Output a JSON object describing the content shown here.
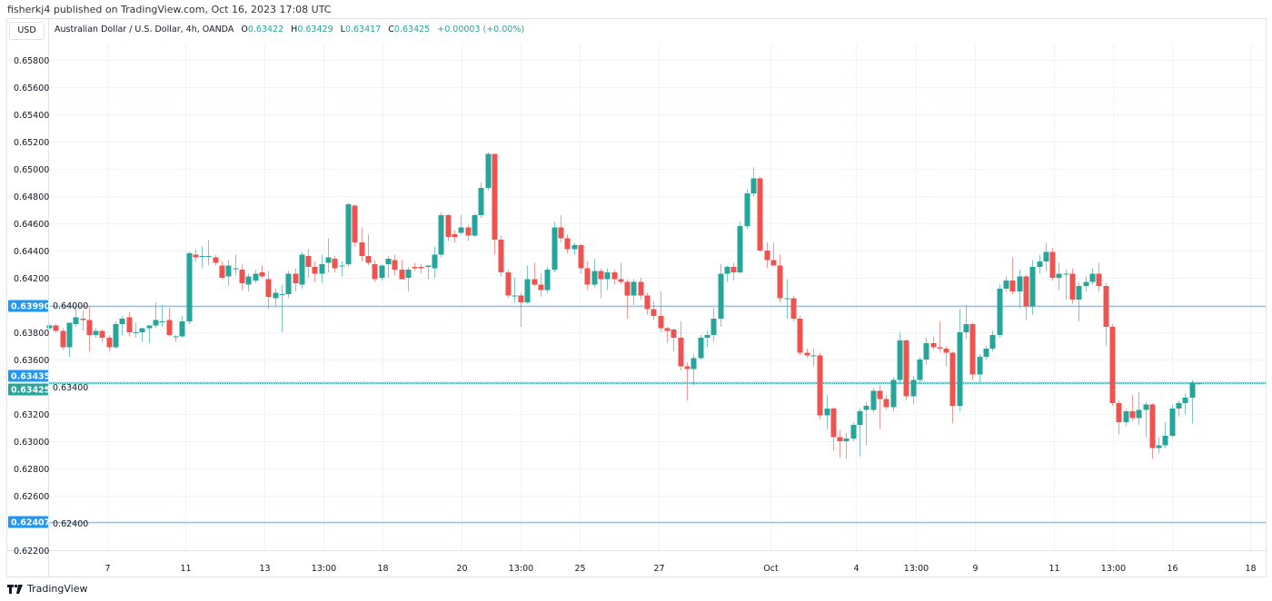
{
  "header": {
    "published": "fisherkj4 published on TradingView.com, Oct 16, 2023 17:08 UTC"
  },
  "currency_button": "USD",
  "legend": {
    "symbol": "Australian Dollar / U.S. Dollar, 4h, OANDA",
    "o_label": "O",
    "o": "0.63422",
    "h_label": "H",
    "h": "0.63429",
    "l_label": "L",
    "l": "0.63417",
    "c_label": "C",
    "c": "0.63425",
    "change": "+0.00003 (+0.00%)"
  },
  "footer": {
    "brand": "TradingView"
  },
  "colors": {
    "up": "#26a69a",
    "down": "#ef5350",
    "hline": "#90c4f0",
    "label_blue": "#2196f3",
    "label_green": "#26a69a",
    "grid": "#f0f3fa"
  },
  "chart_data": {
    "type": "candlestick",
    "symbol": "AUDUSD",
    "interval": "4h",
    "ylim": [
      0.622,
      0.659
    ],
    "price_axis_position": "left",
    "grid": true,
    "y_ticks": [
      "0.65800",
      "0.65600",
      "0.65400",
      "0.65200",
      "0.65000",
      "0.64800",
      "0.64600",
      "0.64400",
      "0.64200",
      "0.64000",
      "0.63800",
      "0.63600",
      "0.63400",
      "0.63200",
      "0.63000",
      "0.62800",
      "0.62600",
      "0.62400",
      "0.62200"
    ],
    "x_ticks": [
      {
        "label": "7",
        "at": 8.8
      },
      {
        "label": "11",
        "at": 20.5
      },
      {
        "label": "13",
        "at": 32.4
      },
      {
        "label": "13:00",
        "at": 41.3
      },
      {
        "label": "18",
        "at": 50.2
      },
      {
        "label": "20",
        "at": 62.1
      },
      {
        "label": "13:00",
        "at": 71
      },
      {
        "label": "25",
        "at": 79.9
      },
      {
        "label": "27",
        "at": 91.8
      },
      {
        "label": "Oct",
        "at": 108.6
      },
      {
        "label": "4",
        "at": 121.5
      },
      {
        "label": "13:00",
        "at": 130.5
      },
      {
        "label": "9",
        "at": 139.3
      },
      {
        "label": "11",
        "at": 151.2
      },
      {
        "label": "13:00",
        "at": 160.1
      },
      {
        "label": "16",
        "at": 169.1
      },
      {
        "label": "18",
        "at": 180.8
      }
    ],
    "horizontal_lines": [
      {
        "price": 0.6399,
        "label": "0.63990",
        "style": "solid",
        "label_color": "#2196f3"
      },
      {
        "price": 0.63435,
        "label": "0.63435",
        "style": "solid",
        "label_color": "#2196f3"
      },
      {
        "price": 0.63425,
        "label": "0.63425",
        "style": "dotted",
        "label_color": "#26a69a"
      },
      {
        "price": 0.62407,
        "label": "0.62407",
        "style": "solid",
        "label_color": "#2196f3"
      }
    ],
    "ohlc": [
      [
        0.6383,
        0.6386,
        0.6382,
        0.6385
      ],
      [
        0.6385,
        0.6386,
        0.638,
        0.6381
      ],
      [
        0.6381,
        0.6383,
        0.6367,
        0.6369
      ],
      [
        0.6369,
        0.6387,
        0.6362,
        0.6387
      ],
      [
        0.6386,
        0.6398,
        0.6384,
        0.6391
      ],
      [
        0.639,
        0.6396,
        0.6381,
        0.6389
      ],
      [
        0.6389,
        0.6399,
        0.6366,
        0.6378
      ],
      [
        0.6378,
        0.6383,
        0.6376,
        0.6381
      ],
      [
        0.6381,
        0.6382,
        0.6373,
        0.6376
      ],
      [
        0.6376,
        0.6378,
        0.6366,
        0.6369
      ],
      [
        0.6369,
        0.6388,
        0.6368,
        0.6386
      ],
      [
        0.6386,
        0.6392,
        0.6378,
        0.639
      ],
      [
        0.6391,
        0.6395,
        0.6377,
        0.638
      ],
      [
        0.638,
        0.6387,
        0.6376,
        0.638
      ],
      [
        0.638,
        0.6383,
        0.6373,
        0.6383
      ],
      [
        0.6383,
        0.6385,
        0.6372,
        0.6385
      ],
      [
        0.6385,
        0.6402,
        0.6383,
        0.6389
      ],
      [
        0.6388,
        0.64,
        0.6384,
        0.6388
      ],
      [
        0.6389,
        0.6398,
        0.6377,
        0.6378
      ],
      [
        0.6377,
        0.6378,
        0.6373,
        0.6377
      ],
      [
        0.6377,
        0.6392,
        0.6376,
        0.6388
      ],
      [
        0.6388,
        0.6439,
        0.6386,
        0.6438
      ],
      [
        0.6437,
        0.6441,
        0.6432,
        0.6435
      ],
      [
        0.6436,
        0.6443,
        0.6427,
        0.6436
      ],
      [
        0.6436,
        0.6448,
        0.6429,
        0.6436
      ],
      [
        0.6435,
        0.6437,
        0.6429,
        0.6431
      ],
      [
        0.6429,
        0.6432,
        0.6419,
        0.642
      ],
      [
        0.6421,
        0.6433,
        0.6414,
        0.6429
      ],
      [
        0.6427,
        0.6437,
        0.6422,
        0.6427
      ],
      [
        0.6426,
        0.643,
        0.6411,
        0.6416
      ],
      [
        0.6415,
        0.6423,
        0.641,
        0.6421
      ],
      [
        0.6418,
        0.6426,
        0.6416,
        0.6423
      ],
      [
        0.6424,
        0.6429,
        0.642,
        0.6421
      ],
      [
        0.6419,
        0.6425,
        0.6397,
        0.6406
      ],
      [
        0.6405,
        0.6412,
        0.6399,
        0.6409
      ],
      [
        0.6408,
        0.6415,
        0.638,
        0.6408
      ],
      [
        0.6408,
        0.6425,
        0.6405,
        0.6423
      ],
      [
        0.6423,
        0.6427,
        0.641,
        0.6416
      ],
      [
        0.6415,
        0.6439,
        0.6412,
        0.6437
      ],
      [
        0.6436,
        0.6441,
        0.642,
        0.6428
      ],
      [
        0.6428,
        0.6432,
        0.6417,
        0.6423
      ],
      [
        0.6423,
        0.6437,
        0.6416,
        0.643
      ],
      [
        0.6431,
        0.6449,
        0.6424,
        0.6435
      ],
      [
        0.6434,
        0.6436,
        0.6424,
        0.6427
      ],
      [
        0.6429,
        0.6432,
        0.6421,
        0.6429
      ],
      [
        0.643,
        0.6475,
        0.6428,
        0.6474
      ],
      [
        0.6473,
        0.6474,
        0.6443,
        0.6446
      ],
      [
        0.6446,
        0.6457,
        0.6432,
        0.6436
      ],
      [
        0.6436,
        0.6452,
        0.6429,
        0.6431
      ],
      [
        0.643,
        0.6433,
        0.6417,
        0.6419
      ],
      [
        0.642,
        0.643,
        0.6418,
        0.6429
      ],
      [
        0.643,
        0.6436,
        0.642,
        0.6434
      ],
      [
        0.6433,
        0.6437,
        0.6422,
        0.6426
      ],
      [
        0.6426,
        0.6433,
        0.6419,
        0.6419
      ],
      [
        0.642,
        0.6428,
        0.641,
        0.6426
      ],
      [
        0.6428,
        0.6431,
        0.6425,
        0.6427
      ],
      [
        0.6428,
        0.643,
        0.6423,
        0.6427
      ],
      [
        0.6428,
        0.6429,
        0.6419,
        0.6429
      ],
      [
        0.6427,
        0.6443,
        0.642,
        0.6437
      ],
      [
        0.6437,
        0.6468,
        0.6435,
        0.6466
      ],
      [
        0.6466,
        0.6467,
        0.6447,
        0.645
      ],
      [
        0.6452,
        0.6455,
        0.6446,
        0.645
      ],
      [
        0.6453,
        0.6466,
        0.6452,
        0.6457
      ],
      [
        0.6457,
        0.6459,
        0.6447,
        0.6451
      ],
      [
        0.6451,
        0.6467,
        0.645,
        0.6466
      ],
      [
        0.6466,
        0.649,
        0.6464,
        0.6486
      ],
      [
        0.6486,
        0.6512,
        0.6484,
        0.6511
      ],
      [
        0.6511,
        0.6511,
        0.6437,
        0.6448
      ],
      [
        0.6448,
        0.6451,
        0.6421,
        0.6424
      ],
      [
        0.6424,
        0.6426,
        0.6405,
        0.6407
      ],
      [
        0.6407,
        0.642,
        0.6402,
        0.6407
      ],
      [
        0.6407,
        0.6409,
        0.6384,
        0.6402
      ],
      [
        0.6402,
        0.6429,
        0.6401,
        0.6419
      ],
      [
        0.6419,
        0.6431,
        0.6414,
        0.6415
      ],
      [
        0.6415,
        0.6423,
        0.6406,
        0.6411
      ],
      [
        0.6411,
        0.6428,
        0.6409,
        0.6426
      ],
      [
        0.6426,
        0.6461,
        0.6424,
        0.6457
      ],
      [
        0.6457,
        0.6466,
        0.6446,
        0.6449
      ],
      [
        0.6449,
        0.6452,
        0.6438,
        0.6441
      ],
      [
        0.6441,
        0.6446,
        0.6437,
        0.6444
      ],
      [
        0.6444,
        0.6445,
        0.6423,
        0.6427
      ],
      [
        0.6427,
        0.6432,
        0.6411,
        0.6415
      ],
      [
        0.6415,
        0.6434,
        0.6413,
        0.6425
      ],
      [
        0.6425,
        0.6427,
        0.6405,
        0.6419
      ],
      [
        0.6419,
        0.6427,
        0.6411,
        0.6424
      ],
      [
        0.6424,
        0.6426,
        0.6415,
        0.6419
      ],
      [
        0.6419,
        0.6431,
        0.6415,
        0.6417
      ],
      [
        0.6417,
        0.6419,
        0.639,
        0.6407
      ],
      [
        0.6407,
        0.6419,
        0.64,
        0.6417
      ],
      [
        0.6417,
        0.642,
        0.6404,
        0.6407
      ],
      [
        0.6407,
        0.6409,
        0.6393,
        0.6397
      ],
      [
        0.6397,
        0.6403,
        0.6389,
        0.6392
      ],
      [
        0.6392,
        0.641,
        0.638,
        0.6383
      ],
      [
        0.6383,
        0.6384,
        0.6372,
        0.6381
      ],
      [
        0.6382,
        0.6383,
        0.6366,
        0.6376
      ],
      [
        0.6376,
        0.6388,
        0.6352,
        0.6355
      ],
      [
        0.6355,
        0.6358,
        0.633,
        0.6353
      ],
      [
        0.6353,
        0.6364,
        0.6341,
        0.6361
      ],
      [
        0.6361,
        0.6378,
        0.636,
        0.6376
      ],
      [
        0.6376,
        0.6381,
        0.6369,
        0.6378
      ],
      [
        0.6378,
        0.6398,
        0.6373,
        0.639
      ],
      [
        0.639,
        0.643,
        0.6384,
        0.6423
      ],
      [
        0.6423,
        0.6429,
        0.6417,
        0.6428
      ],
      [
        0.6428,
        0.6431,
        0.6418,
        0.6424
      ],
      [
        0.6424,
        0.6461,
        0.6423,
        0.6458
      ],
      [
        0.6458,
        0.6485,
        0.6456,
        0.6482
      ],
      [
        0.6482,
        0.6501,
        0.648,
        0.6493
      ],
      [
        0.6493,
        0.6494,
        0.6439,
        0.644
      ],
      [
        0.644,
        0.6446,
        0.6427,
        0.6433
      ],
      [
        0.6433,
        0.6446,
        0.6429,
        0.6429
      ],
      [
        0.6429,
        0.6437,
        0.6402,
        0.6405
      ],
      [
        0.6405,
        0.6419,
        0.639,
        0.6405
      ],
      [
        0.6405,
        0.6407,
        0.6388,
        0.639
      ],
      [
        0.639,
        0.6392,
        0.6363,
        0.6365
      ],
      [
        0.6365,
        0.6368,
        0.6361,
        0.6363
      ],
      [
        0.6363,
        0.6368,
        0.6355,
        0.6363
      ],
      [
        0.6363,
        0.6365,
        0.6316,
        0.6319
      ],
      [
        0.6319,
        0.6334,
        0.6309,
        0.6324
      ],
      [
        0.6324,
        0.6325,
        0.6293,
        0.6303
      ],
      [
        0.6303,
        0.6308,
        0.6288,
        0.63
      ],
      [
        0.63,
        0.6306,
        0.6287,
        0.6302
      ],
      [
        0.6302,
        0.6314,
        0.63,
        0.6312
      ],
      [
        0.6312,
        0.6324,
        0.6289,
        0.6322
      ],
      [
        0.6323,
        0.6329,
        0.6297,
        0.6326
      ],
      [
        0.6323,
        0.6339,
        0.6321,
        0.6337
      ],
      [
        0.6337,
        0.6341,
        0.6309,
        0.6331
      ],
      [
        0.6331,
        0.6334,
        0.6323,
        0.6325
      ],
      [
        0.6325,
        0.6347,
        0.6322,
        0.6345
      ],
      [
        0.6345,
        0.638,
        0.6342,
        0.6374
      ],
      [
        0.6374,
        0.6375,
        0.633,
        0.6333
      ],
      [
        0.6333,
        0.6348,
        0.6327,
        0.6345
      ],
      [
        0.6345,
        0.6362,
        0.6342,
        0.636
      ],
      [
        0.636,
        0.6376,
        0.6356,
        0.6372
      ],
      [
        0.6372,
        0.6377,
        0.6367,
        0.6369
      ],
      [
        0.6369,
        0.6388,
        0.6365,
        0.6368
      ],
      [
        0.6368,
        0.637,
        0.6355,
        0.6365
      ],
      [
        0.6365,
        0.6366,
        0.6313,
        0.6326
      ],
      [
        0.6326,
        0.6397,
        0.6322,
        0.638
      ],
      [
        0.638,
        0.64,
        0.6375,
        0.6386
      ],
      [
        0.6386,
        0.6387,
        0.6345,
        0.6349
      ],
      [
        0.6349,
        0.6364,
        0.6343,
        0.6362
      ],
      [
        0.6362,
        0.637,
        0.636,
        0.6368
      ],
      [
        0.6368,
        0.6381,
        0.6366,
        0.6378
      ],
      [
        0.6378,
        0.6415,
        0.6376,
        0.6412
      ],
      [
        0.6412,
        0.6421,
        0.641,
        0.6418
      ],
      [
        0.6418,
        0.6435,
        0.6408,
        0.641
      ],
      [
        0.641,
        0.6426,
        0.6398,
        0.6421
      ],
      [
        0.6421,
        0.6422,
        0.6389,
        0.6399
      ],
      [
        0.6399,
        0.6433,
        0.6393,
        0.6428
      ],
      [
        0.6428,
        0.6437,
        0.6423,
        0.6432
      ],
      [
        0.6432,
        0.6446,
        0.6425,
        0.6439
      ],
      [
        0.6439,
        0.6442,
        0.6418,
        0.642
      ],
      [
        0.642,
        0.6431,
        0.6411,
        0.6423
      ],
      [
        0.6423,
        0.6426,
        0.6404,
        0.6423
      ],
      [
        0.6423,
        0.6427,
        0.6401,
        0.6404
      ],
      [
        0.6404,
        0.6417,
        0.6388,
        0.6414
      ],
      [
        0.6414,
        0.6421,
        0.641,
        0.6417
      ],
      [
        0.6417,
        0.6427,
        0.6415,
        0.6423
      ],
      [
        0.6423,
        0.6431,
        0.641,
        0.6414
      ],
      [
        0.6414,
        0.6416,
        0.637,
        0.6384
      ],
      [
        0.6384,
        0.6386,
        0.6326,
        0.6328
      ],
      [
        0.6328,
        0.633,
        0.6305,
        0.6314
      ],
      [
        0.6314,
        0.6324,
        0.6311,
        0.6322
      ],
      [
        0.6322,
        0.6334,
        0.6315,
        0.6317
      ],
      [
        0.6317,
        0.6336,
        0.6312,
        0.6323
      ],
      [
        0.6323,
        0.6329,
        0.6303,
        0.6327
      ],
      [
        0.6327,
        0.6328,
        0.6287,
        0.6295
      ],
      [
        0.6295,
        0.6303,
        0.6291,
        0.6297
      ],
      [
        0.6297,
        0.6314,
        0.6295,
        0.6304
      ],
      [
        0.6304,
        0.6327,
        0.6303,
        0.6324
      ],
      [
        0.6324,
        0.633,
        0.6318,
        0.6328
      ],
      [
        0.6328,
        0.6335,
        0.632,
        0.6332
      ],
      [
        0.6332,
        0.6345,
        0.6313,
        0.6343
      ],
      [
        0.63422,
        0.63429,
        0.63417,
        0.63425
      ]
    ]
  }
}
